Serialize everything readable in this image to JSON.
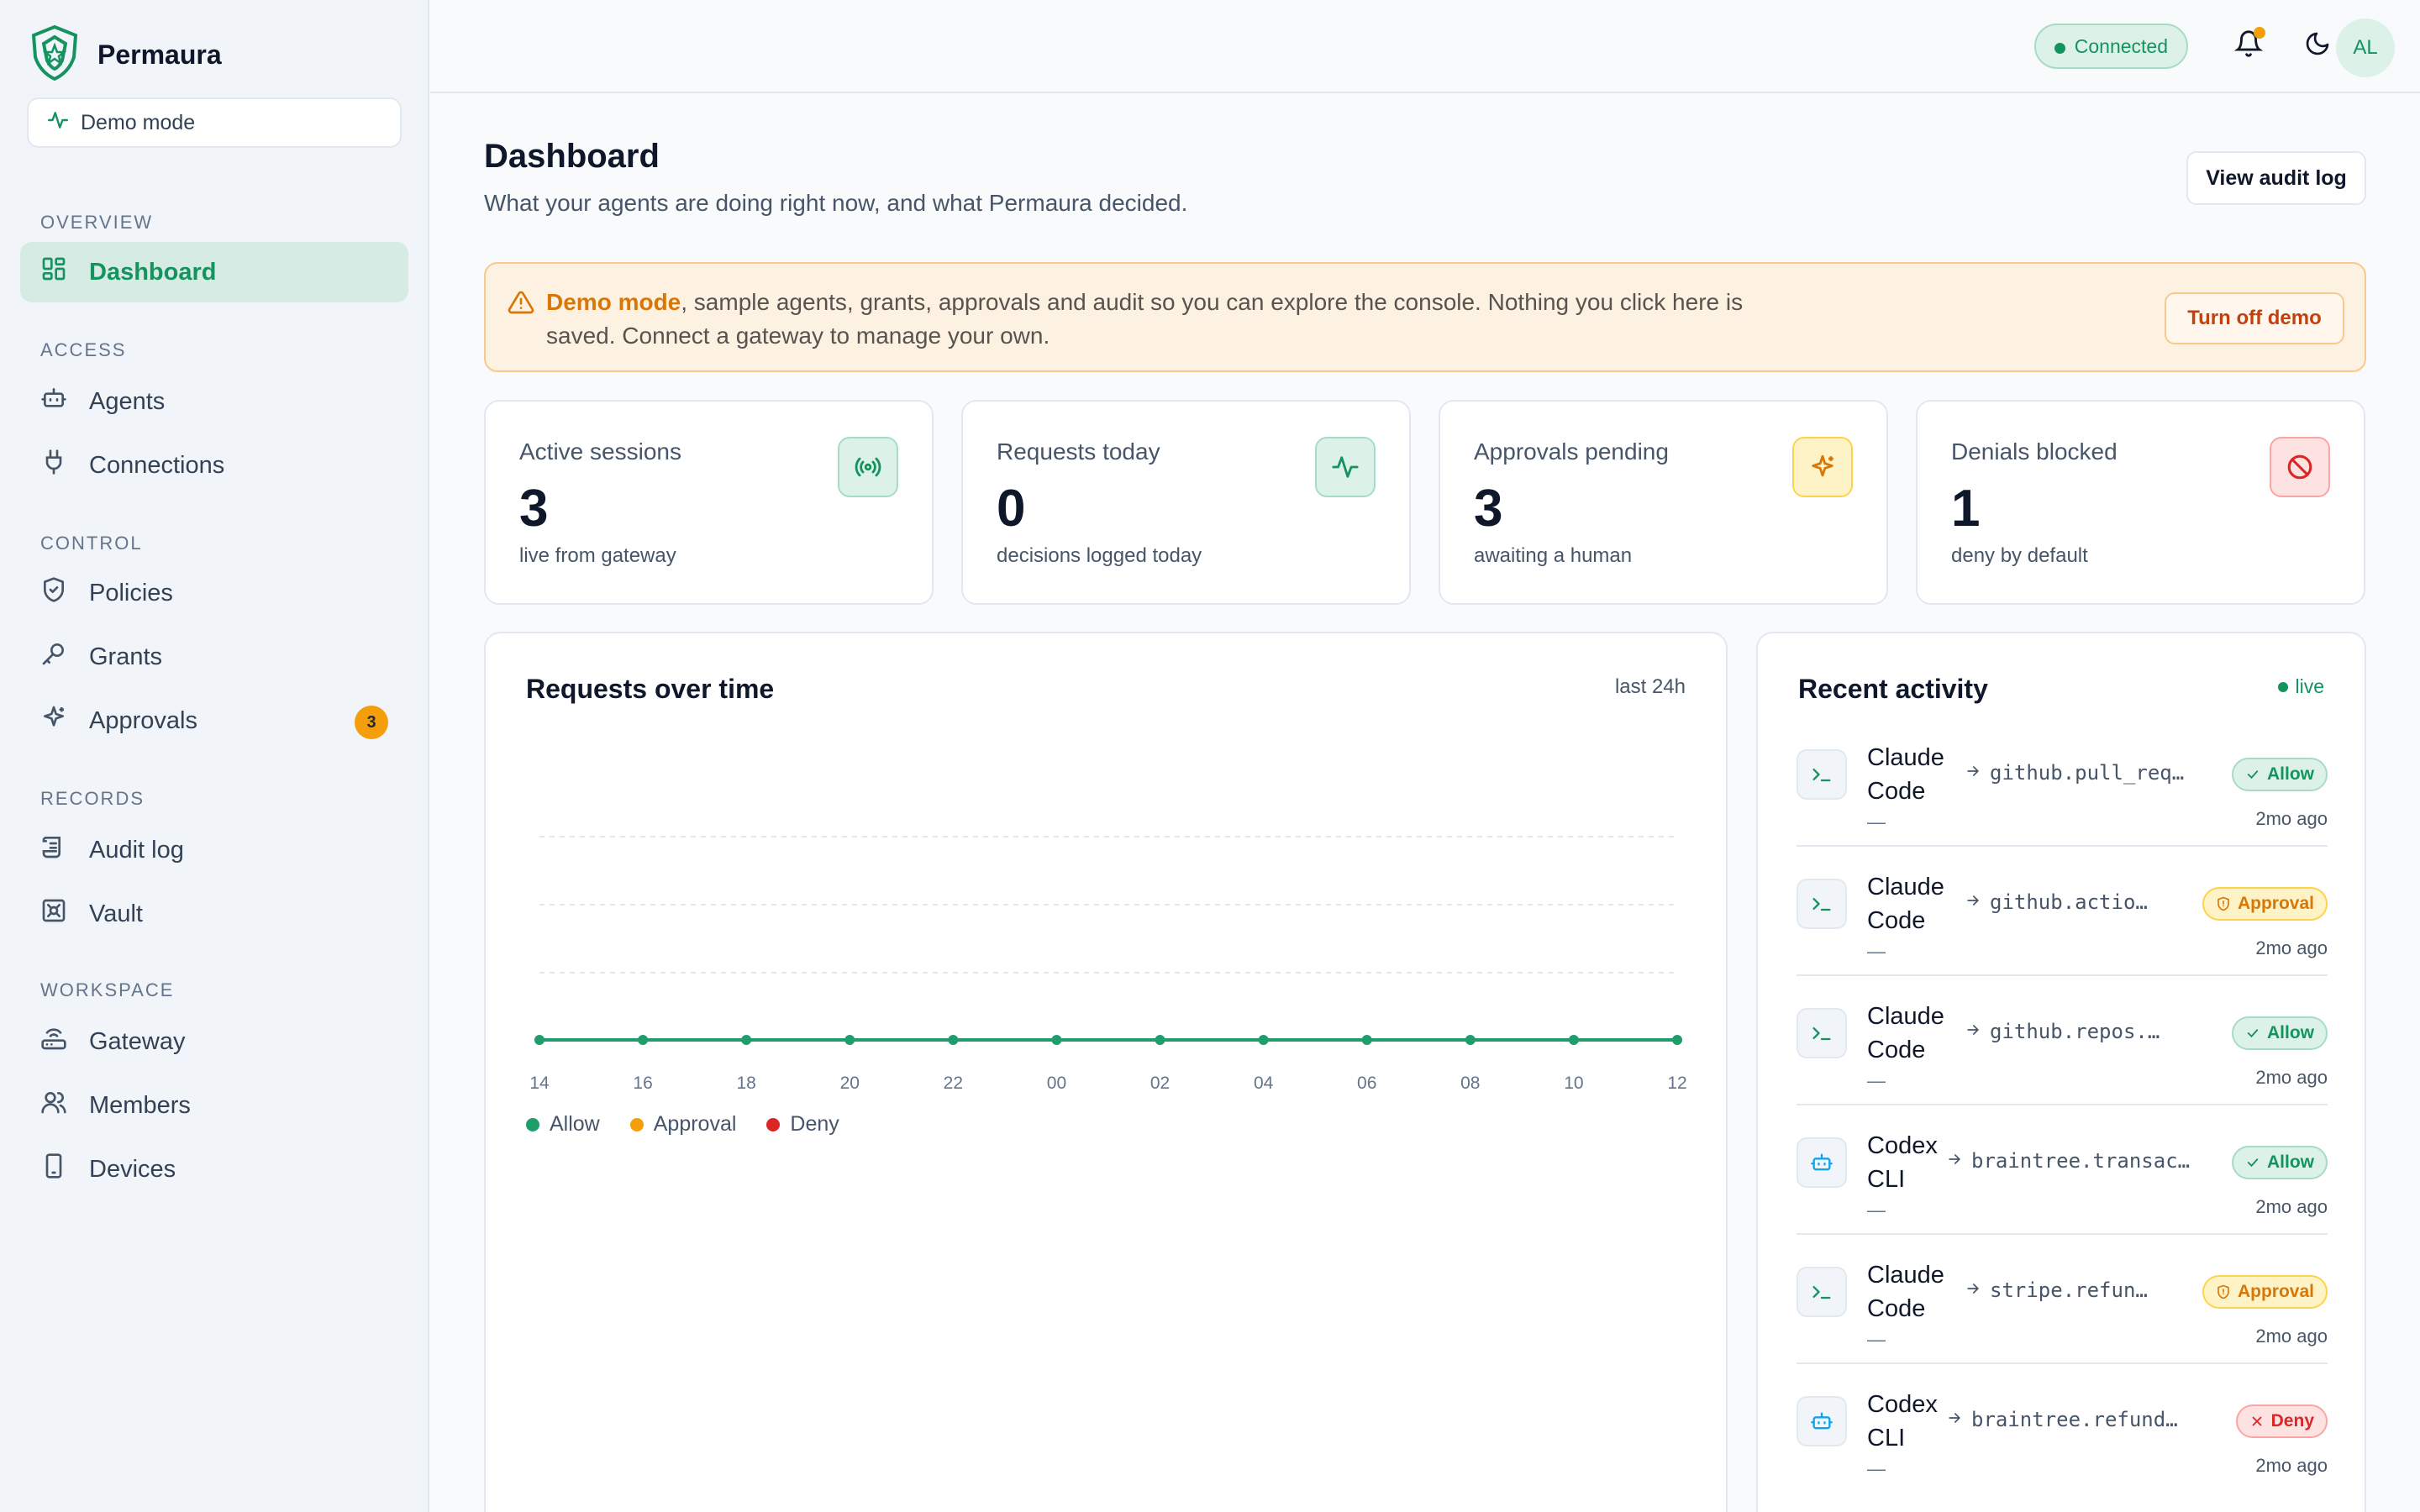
{
  "sidebar": {
    "brand": "Permaura",
    "demo_label": "Demo mode",
    "sections": {
      "overview": "OVERVIEW",
      "access": "ACCESS",
      "control": "CONTROL",
      "records": "RECORDS",
      "workspace": "WORKSPACE"
    },
    "items": {
      "dashboard": "Dashboard",
      "agents": "Agents",
      "connections": "Connections",
      "policies": "Policies",
      "grants": "Grants",
      "approvals": "Approvals",
      "approvals_badge": "3",
      "audit_log": "Audit log",
      "vault": "Vault",
      "gateway": "Gateway",
      "members": "Members",
      "devices": "Devices"
    }
  },
  "topbar": {
    "status": "Connected",
    "avatar": "AL"
  },
  "header": {
    "title": "Dashboard",
    "subtitle": "What your agents are doing right now, and what Permaura decided.",
    "audit_button": "View audit log"
  },
  "banner": {
    "highlight": "Demo mode",
    "text": ", sample agents, grants, approvals and audit so you can explore the console. Nothing you click here is saved. Connect a gateway to manage your own.",
    "button": "Turn off demo"
  },
  "stats": [
    {
      "label": "Active sessions",
      "value": "3",
      "sub": "live from gateway",
      "icon": "broadcast-icon"
    },
    {
      "label": "Requests today",
      "value": "0",
      "sub": "decisions logged today",
      "icon": "activity-icon"
    },
    {
      "label": "Approvals pending",
      "value": "3",
      "sub": "awaiting a human",
      "icon": "sparkle-icon"
    },
    {
      "label": "Denials blocked",
      "value": "1",
      "sub": "deny by default",
      "icon": "ban-icon"
    }
  ],
  "chart_data": {
    "type": "line",
    "title": "Requests over time",
    "range_label": "last 24h",
    "x": [
      "14",
      "16",
      "18",
      "20",
      "22",
      "00",
      "02",
      "04",
      "06",
      "08",
      "10",
      "12"
    ],
    "series": [
      {
        "name": "Allow",
        "values": [
          0,
          0,
          0,
          0,
          0,
          0,
          0,
          0,
          0,
          0,
          0,
          0
        ],
        "color": "#1f9d6b"
      }
    ],
    "legend": [
      "Allow",
      "Approval",
      "Deny"
    ],
    "legend_colors": [
      "#1f9d6b",
      "#f59e0b",
      "#dc2626"
    ],
    "grid": true,
    "ylim": [
      0,
      4
    ]
  },
  "activity": {
    "title": "Recent activity",
    "live": "live",
    "rows": [
      {
        "agent": "Claude Code",
        "target": "github.pull_req…",
        "decision": "Allow",
        "time": "2mo ago",
        "sub": "—",
        "kind": "terminal"
      },
      {
        "agent": "Claude Code",
        "target": "github.actio…",
        "decision": "Approval",
        "time": "2mo ago",
        "sub": "—",
        "kind": "terminal"
      },
      {
        "agent": "Claude Code",
        "target": "github.repos.…",
        "decision": "Allow",
        "time": "2mo ago",
        "sub": "—",
        "kind": "terminal"
      },
      {
        "agent": "Codex CLI",
        "target": "braintree.transac…",
        "decision": "Allow",
        "time": "2mo ago",
        "sub": "—",
        "kind": "bot"
      },
      {
        "agent": "Claude Code",
        "target": "stripe.refun…",
        "decision": "Approval",
        "time": "2mo ago",
        "sub": "—",
        "kind": "terminal"
      },
      {
        "agent": "Codex CLI",
        "target": "braintree.refund…",
        "decision": "Deny",
        "time": "2mo ago",
        "sub": "—",
        "kind": "bot"
      }
    ]
  }
}
